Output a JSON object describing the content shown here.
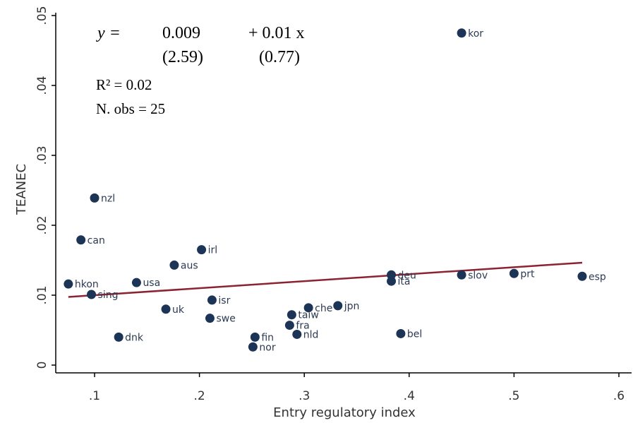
{
  "chart_data": {
    "type": "scatter",
    "xlabel": "Entry regulatory index",
    "ylabel": "TEANEC",
    "xlim": [
      0.07,
      0.6
    ],
    "ylim": [
      0,
      0.05
    ],
    "x_ticks": [
      0.1,
      0.2,
      0.3,
      0.4,
      0.5,
      0.6
    ],
    "x_tick_labels": [
      ".1",
      ".2",
      ".3",
      ".4",
      ".5",
      ".6"
    ],
    "y_ticks": [
      0,
      0.01,
      0.02,
      0.03,
      0.04,
      0.05
    ],
    "y_tick_labels": [
      "0",
      ".01",
      ".02",
      ".03",
      ".04",
      ".05"
    ],
    "points": [
      {
        "label": "kor",
        "x": 0.45,
        "y": 0.0475
      },
      {
        "label": "nzl",
        "x": 0.1,
        "y": 0.0239
      },
      {
        "label": "can",
        "x": 0.087,
        "y": 0.0179
      },
      {
        "label": "irl",
        "x": 0.202,
        "y": 0.0165
      },
      {
        "label": "aus",
        "x": 0.176,
        "y": 0.0143
      },
      {
        "label": "deu",
        "x": 0.383,
        "y": 0.0129
      },
      {
        "label": "ita",
        "x": 0.383,
        "y": 0.012
      },
      {
        "label": "slov",
        "x": 0.45,
        "y": 0.0129
      },
      {
        "label": "prt",
        "x": 0.5,
        "y": 0.0131
      },
      {
        "label": "esp",
        "x": 0.565,
        "y": 0.0127
      },
      {
        "label": "hkon",
        "x": 0.075,
        "y": 0.0116
      },
      {
        "label": "usa",
        "x": 0.14,
        "y": 0.0118
      },
      {
        "label": "sing",
        "x": 0.097,
        "y": 0.0101
      },
      {
        "label": "isr",
        "x": 0.212,
        "y": 0.0093
      },
      {
        "label": "uk",
        "x": 0.168,
        "y": 0.008
      },
      {
        "label": "swe",
        "x": 0.21,
        "y": 0.0067
      },
      {
        "label": "che",
        "x": 0.304,
        "y": 0.0082
      },
      {
        "label": "jpn",
        "x": 0.332,
        "y": 0.0085
      },
      {
        "label": "taiw",
        "x": 0.288,
        "y": 0.0072
      },
      {
        "label": "fra",
        "x": 0.286,
        "y": 0.0057
      },
      {
        "label": "nld",
        "x": 0.293,
        "y": 0.0044
      },
      {
        "label": "bel",
        "x": 0.392,
        "y": 0.0045
      },
      {
        "label": "fin",
        "x": 0.253,
        "y": 0.004
      },
      {
        "label": "nor",
        "x": 0.251,
        "y": 0.0026
      },
      {
        "label": "dnk",
        "x": 0.123,
        "y": 0.004
      }
    ],
    "fit_line": {
      "intercept": 0.009,
      "slope": 0.01,
      "x_range": [
        0.075,
        0.565
      ]
    },
    "annotations": {
      "equation_lhs": "y =",
      "intercept": "0.009",
      "slope_term": "+ 0.01 x",
      "intercept_t": "(2.59)",
      "slope_t": "(0.77)",
      "r2": "R² = 0.02",
      "nobs": "N. obs = 25"
    },
    "colors": {
      "marker": "#1c3557",
      "fit_line": "#8b2332",
      "axis": "#000000"
    }
  }
}
